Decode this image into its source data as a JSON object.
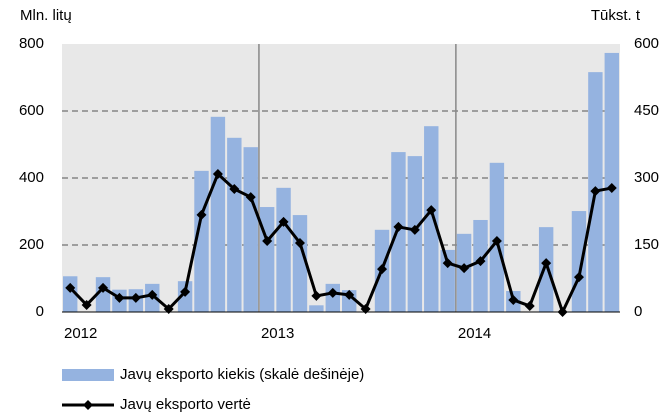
{
  "chart_data": {
    "type": "bar-line",
    "y_label": "Mln. litų",
    "y2_label": "Tūkst. t",
    "categories": [
      "2012",
      null,
      null,
      null,
      null,
      null,
      null,
      null,
      null,
      null,
      null,
      null,
      "2013",
      null,
      null,
      null,
      null,
      null,
      null,
      null,
      null,
      null,
      null,
      null,
      "2014",
      null,
      null,
      null,
      null,
      null,
      null,
      null,
      null,
      null
    ],
    "series": [
      {
        "name": "Javų eksporto kiekis (skalė dešinėje)",
        "type": "bar",
        "axis": "y2",
        "color": "#95b3e0",
        "values": [
          80,
          0,
          78,
          50,
          51,
          63,
          0,
          69,
          316,
          437,
          390,
          369,
          235,
          278,
          217,
          15,
          63,
          49,
          0,
          184,
          358,
          349,
          416,
          139,
          175,
          206,
          334,
          47,
          0,
          190,
          0,
          226,
          537,
          580
        ]
      },
      {
        "name": "Javų eksporto vertė",
        "type": "line",
        "axis": "y",
        "color": "#000000",
        "values": [
          72,
          21,
          72,
          42,
          42,
          51,
          9,
          60,
          290,
          412,
          367,
          343,
          212,
          269,
          206,
          48,
          57,
          51,
          9,
          128,
          254,
          245,
          304,
          146,
          131,
          152,
          212,
          36,
          18,
          146,
          0,
          104,
          361,
          370
        ]
      }
    ],
    "ylim": [
      0,
      800
    ],
    "yticks": [
      0,
      200,
      400,
      600,
      800
    ],
    "y2lim": [
      0,
      600
    ],
    "y2ticks": [
      0,
      150,
      300,
      450,
      600
    ],
    "grid": true
  }
}
